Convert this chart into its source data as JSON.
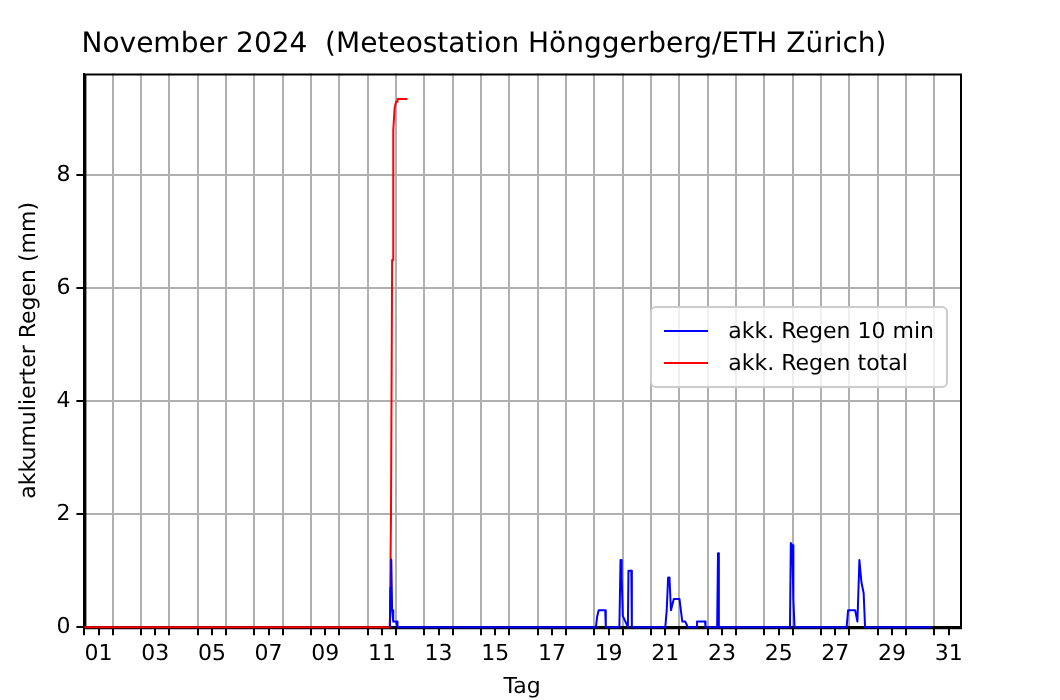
{
  "chart_data": {
    "type": "line",
    "title": "November 2024  (Meteostation Hönggerberg/ETH Zürich)",
    "xlabel": "Tag",
    "ylabel": "akkumulierter Regen (mm)",
    "xlim": [
      1,
      31.9
    ],
    "xticks": [
      {
        "value": 1,
        "label": null
      },
      {
        "value": 1.5,
        "label": "01"
      },
      {
        "value": 2,
        "label": null
      },
      {
        "value": 3,
        "label": null
      },
      {
        "value": 3.5,
        "label": "03"
      },
      {
        "value": 4,
        "label": null
      },
      {
        "value": 5,
        "label": null
      },
      {
        "value": 5.5,
        "label": "05"
      },
      {
        "value": 6,
        "label": null
      },
      {
        "value": 7,
        "label": null
      },
      {
        "value": 7.5,
        "label": "07"
      },
      {
        "value": 8,
        "label": null
      },
      {
        "value": 9,
        "label": null
      },
      {
        "value": 9.5,
        "label": "09"
      },
      {
        "value": 10,
        "label": null
      },
      {
        "value": 11,
        "label": null
      },
      {
        "value": 11.5,
        "label": "11"
      },
      {
        "value": 12,
        "label": null
      },
      {
        "value": 13,
        "label": null
      },
      {
        "value": 13.5,
        "label": "13"
      },
      {
        "value": 14,
        "label": null
      },
      {
        "value": 15,
        "label": null
      },
      {
        "value": 15.5,
        "label": "15"
      },
      {
        "value": 16,
        "label": null
      },
      {
        "value": 17,
        "label": null
      },
      {
        "value": 17.5,
        "label": "17"
      },
      {
        "value": 18,
        "label": null
      },
      {
        "value": 19,
        "label": null
      },
      {
        "value": 19.5,
        "label": "19"
      },
      {
        "value": 20,
        "label": null
      },
      {
        "value": 21,
        "label": null
      },
      {
        "value": 21.5,
        "label": "21"
      },
      {
        "value": 22,
        "label": null
      },
      {
        "value": 23,
        "label": null
      },
      {
        "value": 23.5,
        "label": "23"
      },
      {
        "value": 24,
        "label": null
      },
      {
        "value": 25,
        "label": null
      },
      {
        "value": 25.5,
        "label": "25"
      },
      {
        "value": 26,
        "label": null
      },
      {
        "value": 27,
        "label": null
      },
      {
        "value": 27.5,
        "label": "27"
      },
      {
        "value": 28,
        "label": null
      },
      {
        "value": 29,
        "label": null
      },
      {
        "value": 29.5,
        "label": "29"
      },
      {
        "value": 30,
        "label": null
      },
      {
        "value": 31,
        "label": null
      },
      {
        "value": 31.5,
        "label": "31"
      }
    ],
    "ylim": [
      0,
      9.8
    ],
    "yticks": [
      0,
      2,
      4,
      6,
      8
    ],
    "grid": true,
    "legend": "right",
    "series": [
      {
        "name": "akk. Regen 10 min",
        "color": "#0000ff",
        "x": [
          11.78,
          11.8,
          11.83,
          11.86,
          11.9,
          12.0,
          12.05,
          19.05,
          19.1,
          19.15,
          19.38,
          19.4,
          19.88,
          19.92,
          19.96,
          20.0,
          20.18,
          20.2,
          20.3,
          20.32,
          21.5,
          21.55,
          21.6,
          21.65,
          21.7,
          21.8,
          22.0,
          22.05,
          22.1,
          22.2,
          22.3,
          22.6,
          22.62,
          22.9,
          22.92,
          23.33,
          23.36,
          23.39,
          25.9,
          25.93,
          25.98,
          26.02,
          26.06,
          27.9,
          27.95,
          28.2,
          28.28,
          28.35,
          28.42,
          28.5,
          28.55,
          30.9
        ],
        "values": [
          0,
          0.7,
          1.2,
          0.3,
          0.1,
          0.1,
          0,
          0,
          0.2,
          0.3,
          0.3,
          0,
          0,
          1.19,
          0.9,
          0.2,
          0,
          1.0,
          1.0,
          0,
          0,
          0.3,
          0.88,
          0.85,
          0.3,
          0.5,
          0.5,
          0.3,
          0.1,
          0.1,
          0,
          0,
          0.1,
          0.1,
          0,
          0,
          1.31,
          0,
          0,
          1.49,
          1.45,
          0.5,
          0,
          0,
          0.3,
          0.3,
          0.1,
          1.19,
          0.8,
          0.6,
          0,
          0
        ]
      },
      {
        "name": "akk. Regen total",
        "color": "#ff0000",
        "x": [
          1,
          11.78,
          11.82,
          11.86,
          11.9,
          11.95,
          12.0,
          12.05,
          12.4
        ],
        "values": [
          0,
          0,
          2.0,
          6.5,
          8.8,
          9.2,
          9.3,
          9.35,
          9.35
        ]
      }
    ]
  }
}
